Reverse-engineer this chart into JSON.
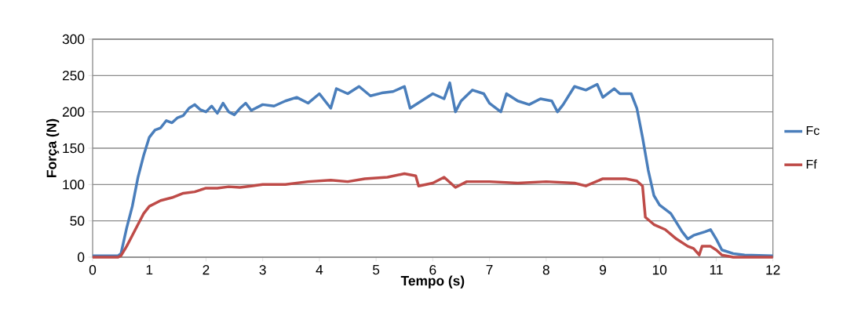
{
  "chart_data": {
    "type": "line",
    "xlabel": "Tempo (s)",
    "ylabel": "Força (N)",
    "xlim": [
      0,
      12
    ],
    "ylim": [
      0,
      300
    ],
    "xticks": [
      0,
      1,
      2,
      3,
      4,
      5,
      6,
      7,
      8,
      9,
      10,
      11,
      12
    ],
    "yticks": [
      0,
      50,
      100,
      150,
      200,
      250,
      300
    ],
    "grid": "y",
    "legend": "right",
    "marker": "none",
    "line_style": "solid",
    "series": [
      {
        "name": "Fc",
        "color": "#4a7ebb",
        "x": [
          0,
          0.45,
          0.5,
          0.6,
          0.7,
          0.8,
          0.9,
          1.0,
          1.1,
          1.2,
          1.3,
          1.4,
          1.5,
          1.6,
          1.7,
          1.8,
          1.9,
          2.0,
          2.1,
          2.2,
          2.3,
          2.4,
          2.5,
          2.6,
          2.7,
          2.8,
          3.0,
          3.2,
          3.4,
          3.6,
          3.8,
          4.0,
          4.2,
          4.3,
          4.5,
          4.7,
          4.9,
          5.1,
          5.3,
          5.5,
          5.6,
          5.8,
          6.0,
          6.2,
          6.3,
          6.4,
          6.5,
          6.7,
          6.9,
          7.0,
          7.2,
          7.3,
          7.5,
          7.7,
          7.9,
          8.1,
          8.2,
          8.3,
          8.5,
          8.7,
          8.9,
          9.0,
          9.2,
          9.3,
          9.5,
          9.6,
          9.7,
          9.8,
          9.9,
          10.0,
          10.2,
          10.4,
          10.5,
          10.6,
          10.8,
          10.9,
          11.0,
          11.1,
          11.3,
          11.5,
          12
        ],
        "values": [
          2,
          2,
          5,
          40,
          70,
          110,
          140,
          165,
          175,
          178,
          188,
          185,
          192,
          195,
          205,
          210,
          203,
          200,
          208,
          198,
          212,
          200,
          196,
          205,
          212,
          202,
          210,
          208,
          215,
          220,
          212,
          225,
          205,
          232,
          225,
          235,
          222,
          226,
          228,
          235,
          205,
          215,
          225,
          218,
          240,
          200,
          215,
          230,
          225,
          212,
          200,
          225,
          215,
          210,
          218,
          215,
          200,
          210,
          235,
          230,
          238,
          220,
          232,
          225,
          225,
          205,
          165,
          120,
          85,
          72,
          60,
          35,
          25,
          30,
          35,
          38,
          25,
          10,
          5,
          3,
          2
        ]
      },
      {
        "name": "Ff",
        "color": "#be4b48",
        "x": [
          0,
          0.45,
          0.5,
          0.6,
          0.7,
          0.8,
          0.9,
          1.0,
          1.2,
          1.4,
          1.6,
          1.8,
          2.0,
          2.2,
          2.4,
          2.6,
          2.8,
          3.0,
          3.4,
          3.8,
          4.2,
          4.5,
          4.8,
          5.2,
          5.5,
          5.7,
          5.75,
          6.0,
          6.2,
          6.4,
          6.6,
          7.0,
          7.5,
          8.0,
          8.5,
          8.7,
          9.0,
          9.4,
          9.6,
          9.7,
          9.75,
          9.9,
          10.1,
          10.3,
          10.5,
          10.6,
          10.7,
          10.75,
          10.9,
          11.0,
          11.1,
          11.3,
          12
        ],
        "values": [
          0,
          0,
          2,
          15,
          30,
          45,
          60,
          70,
          78,
          82,
          88,
          90,
          95,
          95,
          97,
          96,
          98,
          100,
          100,
          104,
          106,
          104,
          108,
          110,
          115,
          112,
          98,
          102,
          110,
          96,
          104,
          104,
          102,
          104,
          102,
          98,
          108,
          108,
          105,
          98,
          55,
          45,
          38,
          25,
          15,
          12,
          3,
          15,
          15,
          10,
          3,
          0,
          0
        ]
      }
    ]
  }
}
